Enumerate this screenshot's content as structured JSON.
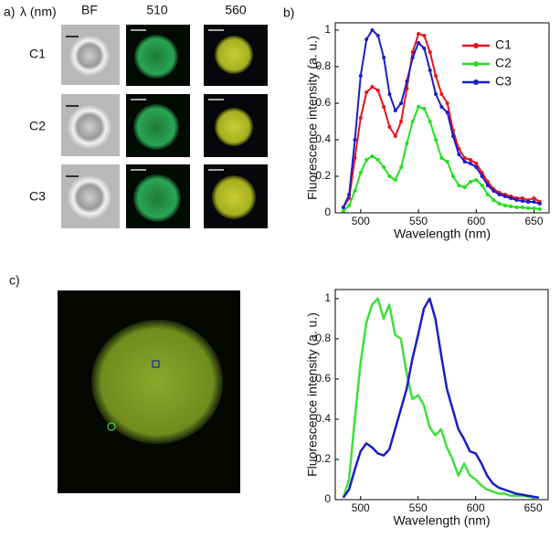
{
  "panel_a": {
    "label": "a)",
    "header": [
      "λ (nm)",
      "BF",
      "510",
      "560"
    ],
    "rows": [
      "C1",
      "C2",
      "C3"
    ]
  },
  "panel_c": {
    "label": "c)"
  },
  "chart_data": [
    {
      "type": "line",
      "panel_label": "b)",
      "xlabel": "Wavelength (nm)",
      "ylabel": "Fluorescence intensity (a. u.)",
      "x": [
        485,
        490,
        495,
        500,
        505,
        510,
        515,
        520,
        525,
        530,
        535,
        540,
        545,
        550,
        555,
        560,
        565,
        570,
        575,
        580,
        585,
        590,
        595,
        600,
        605,
        610,
        615,
        620,
        625,
        630,
        635,
        640,
        645,
        650,
        655
      ],
      "series": [
        {
          "name": "C1",
          "color": "#e8141c",
          "values": [
            0.03,
            0.08,
            0.3,
            0.52,
            0.66,
            0.69,
            0.67,
            0.58,
            0.47,
            0.42,
            0.5,
            0.68,
            0.88,
            0.98,
            0.97,
            0.88,
            0.75,
            0.65,
            0.6,
            0.45,
            0.35,
            0.3,
            0.29,
            0.27,
            0.22,
            0.17,
            0.13,
            0.11,
            0.1,
            0.09,
            0.08,
            0.08,
            0.07,
            0.08,
            0.06
          ]
        },
        {
          "name": "C2",
          "color": "#22e01e",
          "values": [
            0.01,
            0.04,
            0.12,
            0.22,
            0.29,
            0.31,
            0.29,
            0.25,
            0.2,
            0.18,
            0.25,
            0.38,
            0.5,
            0.58,
            0.57,
            0.5,
            0.4,
            0.3,
            0.28,
            0.2,
            0.15,
            0.14,
            0.17,
            0.18,
            0.15,
            0.1,
            0.07,
            0.05,
            0.04,
            0.035,
            0.03,
            0.03,
            0.025,
            0.025,
            0.02
          ]
        },
        {
          "name": "C3",
          "color": "#1c1cc8",
          "values": [
            0.03,
            0.1,
            0.4,
            0.75,
            0.95,
            1.0,
            0.97,
            0.85,
            0.65,
            0.56,
            0.6,
            0.72,
            0.85,
            0.93,
            0.9,
            0.78,
            0.65,
            0.58,
            0.55,
            0.42,
            0.32,
            0.28,
            0.27,
            0.25,
            0.2,
            0.15,
            0.12,
            0.1,
            0.09,
            0.08,
            0.07,
            0.065,
            0.06,
            0.06,
            0.05
          ]
        }
      ],
      "xlim": [
        478,
        663
      ],
      "ylim": [
        0,
        1.04
      ],
      "xticks": [
        500,
        550,
        600,
        650
      ],
      "yticks": [
        0,
        0.2,
        0.4,
        0.6,
        0.8,
        1
      ],
      "markers": true,
      "legend": "upper right"
    },
    {
      "type": "line",
      "xlabel": "Wavelength (nm)",
      "ylabel": "Fluorescence intensity (a. u.)",
      "x": [
        485,
        490,
        495,
        500,
        505,
        510,
        515,
        520,
        525,
        530,
        535,
        540,
        545,
        550,
        555,
        560,
        565,
        570,
        575,
        580,
        585,
        590,
        595,
        600,
        605,
        610,
        615,
        620,
        625,
        630,
        635,
        640,
        645,
        650,
        655
      ],
      "series": [
        {
          "color": "#3ce03a",
          "values": [
            0.01,
            0.1,
            0.4,
            0.68,
            0.88,
            0.97,
            1.0,
            0.9,
            0.97,
            0.82,
            0.8,
            0.63,
            0.5,
            0.52,
            0.47,
            0.36,
            0.32,
            0.35,
            0.26,
            0.2,
            0.12,
            0.18,
            0.12,
            0.1,
            0.07,
            0.05,
            0.04,
            0.03,
            0.03,
            0.02,
            0.02,
            0.02,
            0.015,
            0.01,
            0.01
          ]
        },
        {
          "color": "#1c1cc8",
          "values": [
            0.01,
            0.05,
            0.15,
            0.24,
            0.28,
            0.26,
            0.23,
            0.22,
            0.25,
            0.35,
            0.45,
            0.55,
            0.7,
            0.82,
            0.95,
            1.0,
            0.9,
            0.72,
            0.55,
            0.45,
            0.35,
            0.3,
            0.24,
            0.23,
            0.18,
            0.12,
            0.08,
            0.06,
            0.05,
            0.04,
            0.03,
            0.025,
            0.02,
            0.015,
            0.01
          ]
        }
      ],
      "xlim": [
        478,
        663
      ],
      "ylim": [
        0,
        1.045
      ],
      "xticks": [
        500,
        550,
        600,
        650
      ],
      "yticks": [
        0,
        0.2,
        0.4,
        0.6,
        0.8,
        1
      ],
      "markers": false
    }
  ]
}
